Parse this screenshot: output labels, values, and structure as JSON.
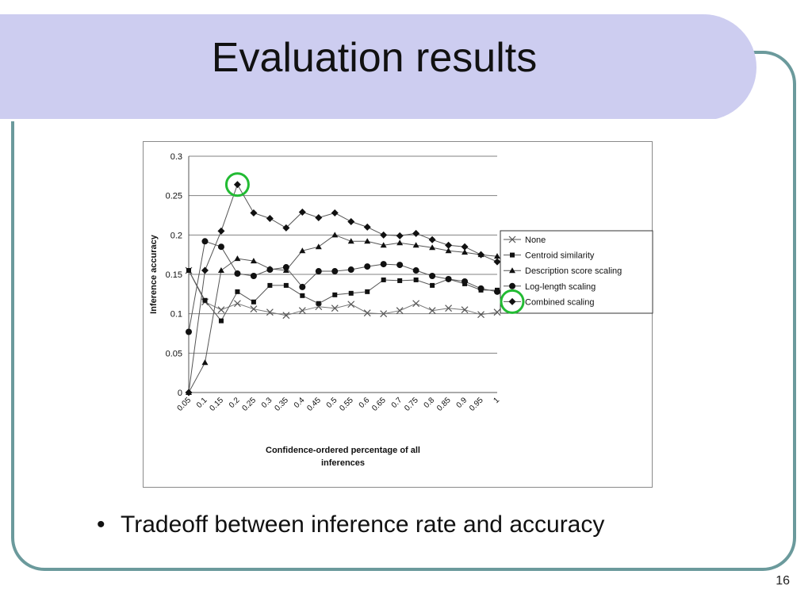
{
  "slide": {
    "title": "Evaluation results",
    "bullet": "Tradeoff between inference rate and accuracy",
    "bullet_marker": "•",
    "page_number": "16"
  },
  "colors": {
    "title_bar": "#cdcdf0",
    "frame": "#6b9a9c",
    "highlight_circle": "#22bb33",
    "series": "#111111",
    "gridline": "#808080"
  },
  "chart_data": {
    "type": "line",
    "title": "",
    "xlabel": "Confidence-ordered percentage of all inferences",
    "ylabel": "Inference accuracy",
    "x": [
      "0.05",
      "0.1",
      "0.15",
      "0.2",
      "0.25",
      "0.3",
      "0.35",
      "0.4",
      "0.45",
      "0.5",
      "0.55",
      "0.6",
      "0.65",
      "0.7",
      "0.75",
      "0.8",
      "0.85",
      "0.9",
      "0.95",
      "1"
    ],
    "y_ticks": [
      "0",
      "0.05",
      "0.1",
      "0.15",
      "0.2",
      "0.25",
      "0.3"
    ],
    "ylim": [
      0,
      0.3
    ],
    "grid": "horizontal",
    "legend_position": "right",
    "series": [
      {
        "name": "None",
        "marker": "x",
        "values": [
          0.155,
          0.115,
          0.105,
          0.113,
          0.106,
          0.102,
          0.098,
          0.104,
          0.109,
          0.107,
          0.112,
          0.101,
          0.1,
          0.104,
          0.113,
          0.104,
          0.107,
          0.105,
          0.099,
          0.102
        ]
      },
      {
        "name": "Centroid similarity",
        "marker": "square",
        "values": [
          0.155,
          0.117,
          0.091,
          0.128,
          0.115,
          0.136,
          0.136,
          0.123,
          0.113,
          0.124,
          0.126,
          0.128,
          0.143,
          0.142,
          0.143,
          0.136,
          0.144,
          0.138,
          0.13,
          0.13
        ]
      },
      {
        "name": "Description score scaling",
        "marker": "triangle",
        "values": [
          0,
          0.038,
          0.155,
          0.17,
          0.167,
          0.157,
          0.155,
          0.18,
          0.185,
          0.2,
          0.192,
          0.192,
          0.187,
          0.19,
          0.187,
          0.184,
          0.18,
          0.178,
          0.175,
          0.173
        ]
      },
      {
        "name": "Log-length scaling",
        "marker": "circle",
        "values": [
          0.077,
          0.192,
          0.185,
          0.151,
          0.148,
          0.156,
          0.159,
          0.134,
          0.154,
          0.154,
          0.156,
          0.16,
          0.163,
          0.162,
          0.155,
          0.148,
          0.144,
          0.141,
          0.132,
          0.128
        ]
      },
      {
        "name": "Combined scaling",
        "marker": "diamond",
        "values": [
          0,
          0.155,
          0.205,
          0.264,
          0.228,
          0.221,
          0.209,
          0.229,
          0.222,
          0.228,
          0.217,
          0.21,
          0.2,
          0.199,
          0.202,
          0.194,
          0.187,
          0.185,
          0.175,
          0.166
        ]
      }
    ],
    "annotations": [
      {
        "type": "circle",
        "target": "peak",
        "series": "Combined scaling",
        "x": "0.2",
        "y": 0.264
      },
      {
        "type": "circle",
        "target": "legend-entry",
        "series": "Combined scaling"
      }
    ]
  }
}
